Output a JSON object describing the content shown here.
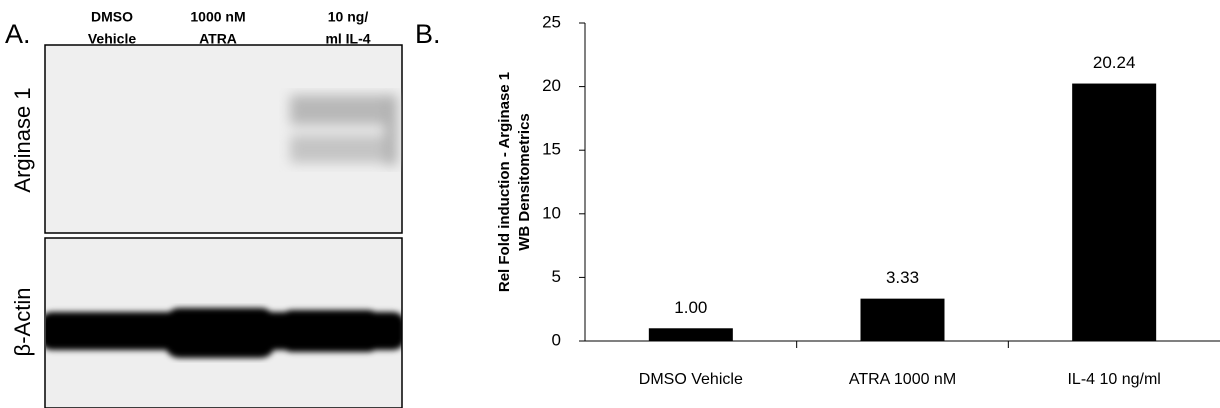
{
  "panel_a": {
    "label": "A.",
    "columns": [
      [
        "DMSO",
        "Vehicle"
      ],
      [
        "1000 nM",
        "ATRA"
      ],
      [
        "10 ng/",
        "ml IL-4"
      ]
    ],
    "rows": [
      "Arginase 1",
      "β-Actin"
    ]
  },
  "chart_data": {
    "type": "bar",
    "panel_label": "B.",
    "ylabel": [
      "Rel Fold induction - Arginase 1",
      "WB Densitometrics"
    ],
    "categories": [
      "DMSO Vehicle",
      "ATRA 1000 nM",
      "IL-4 10 ng/ml"
    ],
    "values": [
      1.0,
      3.33,
      20.24
    ],
    "value_labels": [
      "1.00",
      "3.33",
      "20.24"
    ],
    "color": "#000000",
    "ylim": [
      0,
      25
    ],
    "yticks": [
      0,
      5,
      10,
      15,
      20,
      25
    ],
    "grid": false
  }
}
